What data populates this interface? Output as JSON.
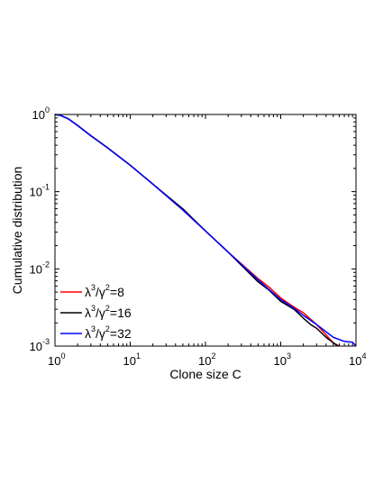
{
  "chart_data": {
    "type": "line",
    "title": "",
    "xlabel": "Clone size C",
    "ylabel": "Cumulative distribution",
    "xscale": "log",
    "yscale": "log",
    "xlim": [
      1,
      10000
    ],
    "ylim": [
      0.001,
      1
    ],
    "x_tick_labels": [
      {
        "base": "10",
        "exp": "0"
      },
      {
        "base": "10",
        "exp": "1"
      },
      {
        "base": "10",
        "exp": "2"
      },
      {
        "base": "10",
        "exp": "3"
      },
      {
        "base": "10",
        "exp": "4"
      }
    ],
    "y_tick_labels": [
      {
        "base": "10",
        "exp": "0"
      },
      {
        "base": "10",
        "exp": "-1"
      },
      {
        "base": "10",
        "exp": "-2"
      },
      {
        "base": "10",
        "exp": "-3"
      }
    ],
    "grid": false,
    "legend_position": "bottom-left",
    "series": [
      {
        "name": "λ³/γ²=8",
        "legend": {
          "pre": "λ",
          "sup1": "3",
          "mid": "/γ",
          "sup2": "2",
          "post": "=8"
        },
        "color": "#ff0000",
        "x": [
          1,
          1.2,
          1.5,
          2,
          3,
          5,
          10,
          20,
          50,
          100,
          200,
          500,
          700,
          1000,
          1500,
          2000,
          3000,
          4000,
          5000,
          6000
        ],
        "y": [
          1,
          0.97,
          0.88,
          0.72,
          0.53,
          0.37,
          0.22,
          0.125,
          0.058,
          0.031,
          0.0165,
          0.0075,
          0.0058,
          0.0042,
          0.0032,
          0.0027,
          0.0019,
          0.0014,
          0.0011,
          0.001
        ]
      },
      {
        "name": "λ³/γ²=16",
        "legend": {
          "pre": "λ",
          "sup1": "3",
          "mid": "/γ",
          "sup2": "2",
          "post": "=16"
        },
        "color": "#000000",
        "x": [
          1,
          1.2,
          1.5,
          2,
          3,
          5,
          10,
          20,
          50,
          100,
          200,
          500,
          700,
          1000,
          1500,
          2000,
          2500,
          3000,
          4000,
          5000,
          5800
        ],
        "y": [
          1,
          0.97,
          0.88,
          0.72,
          0.53,
          0.37,
          0.22,
          0.125,
          0.06,
          0.031,
          0.0165,
          0.0068,
          0.0053,
          0.0038,
          0.003,
          0.0023,
          0.0019,
          0.0017,
          0.0013,
          0.0011,
          0.001
        ]
      },
      {
        "name": "λ³/γ²=32",
        "legend": {
          "pre": "λ",
          "sup1": "3",
          "mid": "/γ",
          "sup2": "2",
          "post": "=32"
        },
        "color": "#0000ff",
        "x": [
          1,
          1.2,
          1.5,
          2,
          3,
          5,
          10,
          20,
          50,
          100,
          200,
          500,
          700,
          1000,
          1500,
          2000,
          3000,
          5000,
          7000,
          9000,
          10000
        ],
        "y": [
          1,
          0.97,
          0.88,
          0.72,
          0.53,
          0.37,
          0.22,
          0.125,
          0.058,
          0.031,
          0.0165,
          0.0072,
          0.0054,
          0.004,
          0.0031,
          0.0025,
          0.0019,
          0.0013,
          0.00115,
          0.00112,
          0.001
        ]
      }
    ]
  }
}
